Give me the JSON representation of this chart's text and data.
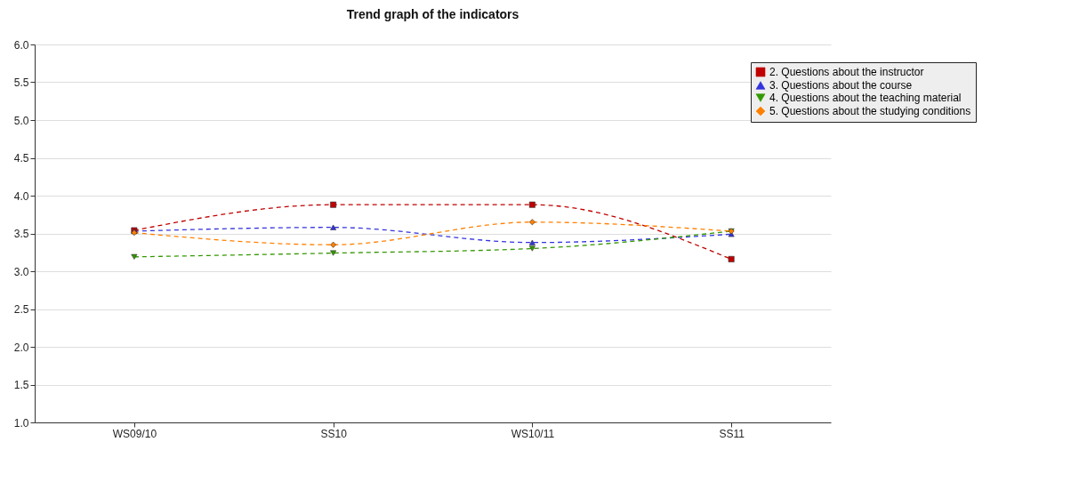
{
  "chart_data": {
    "type": "line",
    "title": "Trend graph of the indicators",
    "categories": [
      "WS09/10",
      "SS10",
      "WS10/11",
      "SS11"
    ],
    "series": [
      {
        "name": "2. Questions about the instructor",
        "color": "#c00000",
        "marker": "square",
        "values": [
          3.54,
          3.88,
          3.88,
          3.16
        ]
      },
      {
        "name": "3. Questions about the course",
        "color": "#3333dd",
        "marker": "triangle",
        "values": [
          3.53,
          3.58,
          3.38,
          3.49
        ]
      },
      {
        "name": "4. Questions about the teaching material",
        "color": "#339900",
        "marker": "triangle-down",
        "values": [
          3.19,
          3.24,
          3.3,
          3.53
        ]
      },
      {
        "name": "5. Questions about the studying conditions",
        "color": "#ff8000",
        "marker": "diamond",
        "values": [
          3.51,
          3.35,
          3.65,
          3.53
        ]
      }
    ],
    "ylim": [
      1.0,
      6.0
    ],
    "yticks": [
      {
        "value": 1,
        "label": "1.0"
      },
      {
        "value": 1.5,
        "label": "1.5"
      },
      {
        "value": 2,
        "label": "2.0"
      },
      {
        "value": 2.5,
        "label": "2.5"
      },
      {
        "value": 3,
        "label": "3.0"
      },
      {
        "value": 3.5,
        "label": "3.5"
      },
      {
        "value": 4,
        "label": "4.0"
      },
      {
        "value": 4.5,
        "label": "4.5"
      },
      {
        "value": 5,
        "label": "5.0"
      },
      {
        "value": 5.5,
        "label": "5.5"
      },
      {
        "value": 6,
        "label": "6.0"
      }
    ],
    "grid": "y",
    "legend": "top right",
    "line_style": "dashed"
  }
}
